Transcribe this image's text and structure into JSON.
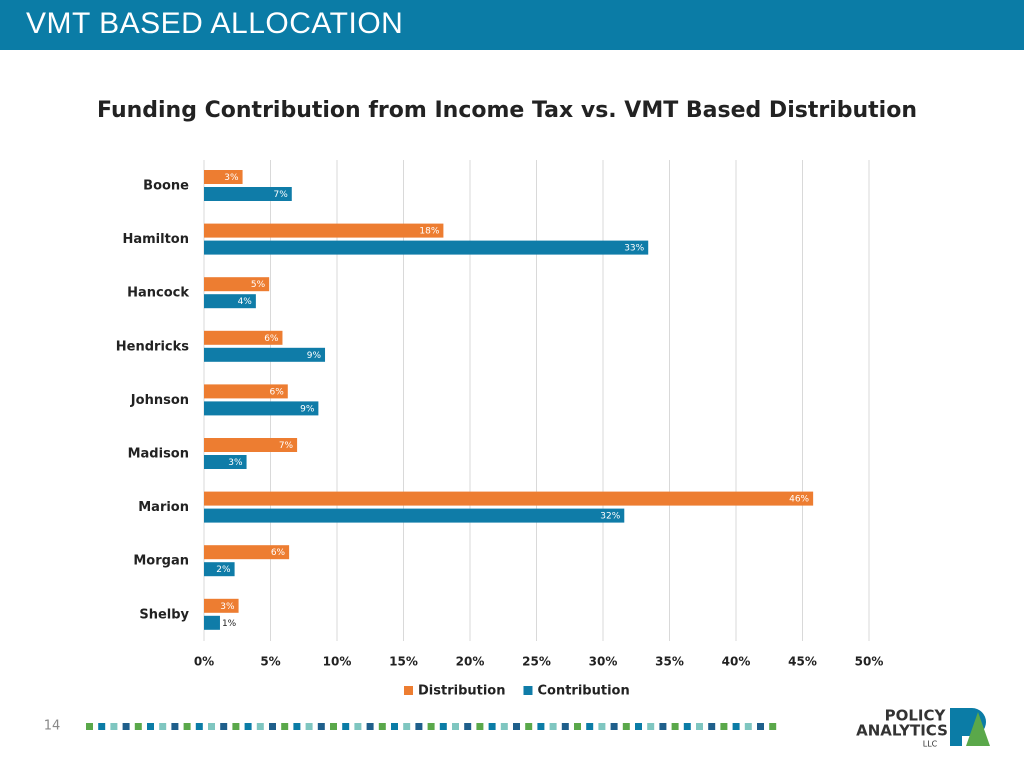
{
  "header": {
    "title": "VMT BASED ALLOCATION"
  },
  "chart_data": {
    "type": "bar",
    "orientation": "horizontal",
    "title": "Funding Contribution from Income Tax vs. VMT Based Distribution",
    "categories": [
      "Boone",
      "Hamilton",
      "Hancock",
      "Hendricks",
      "Johnson",
      "Madison",
      "Marion",
      "Morgan",
      "Shelby"
    ],
    "series": [
      {
        "name": "Distribution",
        "color": "#ed7d31",
        "values": [
          2.9,
          18.0,
          4.9,
          5.9,
          6.3,
          7.0,
          45.8,
          6.4,
          2.6
        ],
        "value_labels": [
          "3%",
          "18%",
          "5%",
          "6%",
          "6%",
          "7%",
          "46%",
          "6%",
          "3%"
        ]
      },
      {
        "name": "Contribution",
        "color": "#0f7ca8",
        "values": [
          6.6,
          33.4,
          3.9,
          9.1,
          8.6,
          3.2,
          31.6,
          2.3,
          1.2
        ],
        "value_labels": [
          "7%",
          "33%",
          "4%",
          "9%",
          "9%",
          "3%",
          "32%",
          "2%",
          "1%"
        ]
      }
    ],
    "xlim": [
      0,
      50
    ],
    "xticks": [
      {
        "value": 0,
        "label": "0%"
      },
      {
        "value": 5,
        "label": "5%"
      },
      {
        "value": 10,
        "label": "10%"
      },
      {
        "value": 15,
        "label": "15%"
      },
      {
        "value": 20,
        "label": "20%"
      },
      {
        "value": 25,
        "label": "25%"
      },
      {
        "value": 30,
        "label": "30%"
      },
      {
        "value": 35,
        "label": "35%"
      },
      {
        "value": 40,
        "label": "40%"
      },
      {
        "value": 45,
        "label": "45%"
      },
      {
        "value": 50,
        "label": "50%"
      }
    ],
    "grid": true,
    "legend": "bottom"
  },
  "footer": {
    "page_number": "14",
    "logo": [
      "POLICY",
      "ANALYTICS",
      "LLC"
    ]
  }
}
